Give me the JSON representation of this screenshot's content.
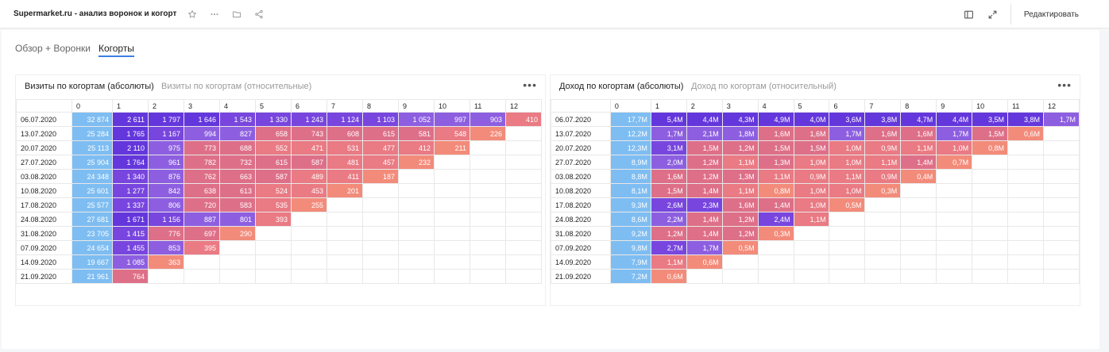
{
  "header": {
    "title": "Supermarket.ru - анализ воронок и когорт",
    "edit_label": "Редактировать"
  },
  "tabs": [
    {
      "label": "Обзор + Воронки",
      "active": false
    },
    {
      "label": "Когорты",
      "active": true
    }
  ],
  "colors": {
    "base": "#7ebdf2",
    "purple_dark": "#6437dc",
    "purple": "#7846de",
    "purple_light": "#8d5fe0",
    "salmon_dark": "#de6f88",
    "salmon": "#ea7a83",
    "salmon_light": "#f38b7a"
  },
  "widgets": [
    {
      "tabs": [
        "Визиты по когортам (абсолюты)",
        "Визиты по когортам (относительные)"
      ],
      "columns": [
        "",
        "0",
        "1",
        "2",
        "3",
        "4",
        "5",
        "6",
        "7",
        "8",
        "9",
        "10",
        "11",
        "12"
      ],
      "rows": [
        {
          "date": "06.07.2020",
          "values": [
            "32 874",
            "2 611",
            "1 797",
            "1 646",
            "1 543",
            "1 330",
            "1 243",
            "1 124",
            "1 103",
            "1 052",
            "997",
            "903",
            "410"
          ]
        },
        {
          "date": "13.07.2020",
          "values": [
            "25 284",
            "1 765",
            "1 167",
            "994",
            "827",
            "658",
            "743",
            "608",
            "615",
            "581",
            "548",
            "226"
          ]
        },
        {
          "date": "20.07.2020",
          "values": [
            "25 113",
            "2 110",
            "975",
            "773",
            "688",
            "552",
            "471",
            "531",
            "477",
            "412",
            "211"
          ]
        },
        {
          "date": "27.07.2020",
          "values": [
            "25 904",
            "1 764",
            "961",
            "782",
            "732",
            "615",
            "587",
            "481",
            "457",
            "232"
          ]
        },
        {
          "date": "03.08.2020",
          "values": [
            "24 348",
            "1 340",
            "876",
            "762",
            "663",
            "587",
            "489",
            "411",
            "187"
          ]
        },
        {
          "date": "10.08.2020",
          "values": [
            "25 601",
            "1 277",
            "842",
            "638",
            "613",
            "524",
            "453",
            "201"
          ]
        },
        {
          "date": "17.08.2020",
          "values": [
            "25 577",
            "1 337",
            "806",
            "720",
            "583",
            "535",
            "255"
          ]
        },
        {
          "date": "24.08.2020",
          "values": [
            "27 681",
            "1 671",
            "1 156",
            "887",
            "801",
            "393"
          ]
        },
        {
          "date": "31.08.2020",
          "values": [
            "23 705",
            "1 415",
            "776",
            "697",
            "290"
          ]
        },
        {
          "date": "07.09.2020",
          "values": [
            "24 654",
            "1 455",
            "853",
            "395"
          ]
        },
        {
          "date": "14.09.2020",
          "values": [
            "19 667",
            "1 085",
            "363"
          ]
        },
        {
          "date": "21.09.2020",
          "values": [
            "21 961",
            "764"
          ]
        }
      ]
    },
    {
      "tabs": [
        "Доход по когортам (абсолюты)",
        "Доход по когортам (относительный)"
      ],
      "columns": [
        "",
        "0",
        "1",
        "2",
        "3",
        "4",
        "5",
        "6",
        "7",
        "8",
        "9",
        "10",
        "11",
        "12"
      ],
      "rows": [
        {
          "date": "06.07.2020",
          "values": [
            "17,7M",
            "5,4M",
            "4,4M",
            "4,3M",
            "4,9M",
            "4,0M",
            "3,6M",
            "3,8M",
            "4,7M",
            "4,4M",
            "3,5M",
            "3,8M",
            "1,7M"
          ]
        },
        {
          "date": "13.07.2020",
          "values": [
            "12,2M",
            "1,7M",
            "2,1M",
            "1,8M",
            "1,6M",
            "1,6M",
            "1,7M",
            "1,6M",
            "1,6M",
            "1,7M",
            "1,5M",
            "0,6M"
          ]
        },
        {
          "date": "20.07.2020",
          "values": [
            "12,3M",
            "3,1M",
            "1,5M",
            "1,2M",
            "1,5M",
            "1,5M",
            "1,0M",
            "0,9M",
            "1,1M",
            "1,0M",
            "0,8M"
          ]
        },
        {
          "date": "27.07.2020",
          "values": [
            "8,9M",
            "2,0M",
            "1,2M",
            "1,1M",
            "1,3M",
            "1,0M",
            "1,0M",
            "1,1M",
            "1,4M",
            "0,7M"
          ]
        },
        {
          "date": "03.08.2020",
          "values": [
            "8,8M",
            "1,6M",
            "1,2M",
            "1,3M",
            "1,1M",
            "0,9M",
            "1,1M",
            "0,9M",
            "0,4M"
          ]
        },
        {
          "date": "10.08.2020",
          "values": [
            "8,1M",
            "1,5M",
            "1,4M",
            "1,1M",
            "0,8M",
            "1,0M",
            "1,0M",
            "0,3M"
          ]
        },
        {
          "date": "17.08.2020",
          "values": [
            "9,3M",
            "2,6M",
            "2,3M",
            "1,6M",
            "1,4M",
            "1,0M",
            "0,5M"
          ]
        },
        {
          "date": "24.08.2020",
          "values": [
            "8,6M",
            "2,2M",
            "1,4M",
            "1,2M",
            "2,4M",
            "1,1M"
          ]
        },
        {
          "date": "31.08.2020",
          "values": [
            "9,2M",
            "1,2M",
            "1,4M",
            "1,2M",
            "0,3M"
          ]
        },
        {
          "date": "07.09.2020",
          "values": [
            "9,8M",
            "2,7M",
            "1,7M",
            "0,5M"
          ]
        },
        {
          "date": "14.09.2020",
          "values": [
            "7,9M",
            "1,1M",
            "0,6M"
          ]
        },
        {
          "date": "21.09.2020",
          "values": [
            "7,2M",
            "0,6M"
          ]
        }
      ]
    }
  ]
}
